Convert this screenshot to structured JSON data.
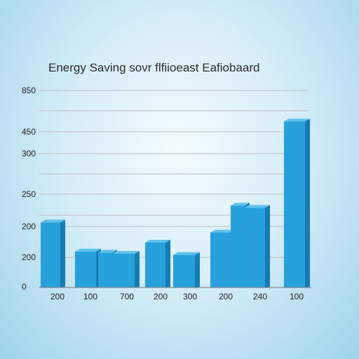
{
  "chart_data": {
    "type": "bar",
    "title": "Energy Saving sovr flfiioeast Eafiobaard",
    "xlabel": "",
    "ylabel": "",
    "y_tick_labels": [
      "850",
      "450",
      "300",
      "250",
      "200",
      "200",
      "0"
    ],
    "categories": [
      "200",
      "100",
      "",
      "700",
      "200",
      "300",
      "200",
      "",
      "240",
      "100"
    ],
    "values": [
      0.29,
      0.16,
      0.155,
      0.15,
      0.2,
      0.145,
      0.245,
      0.365,
      0.355,
      0.74
    ],
    "value_note": "values are fractions of axis height (axis tick labels are non-monotonic)",
    "grid": true,
    "colors": {
      "bar_face": "#27a0dc",
      "bar_side": "#157bb3",
      "bar_top": "#5fc0ec",
      "grid": "#b9bec3",
      "baseline": "#7f8a92"
    }
  }
}
